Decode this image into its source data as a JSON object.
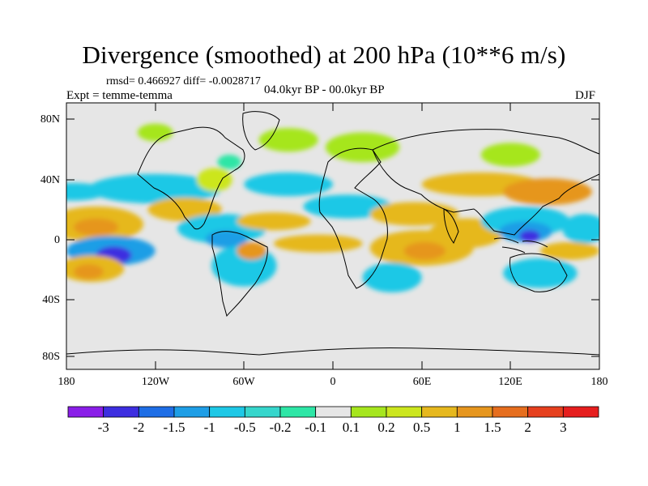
{
  "title": "Divergence (smoothed) at 200 hPa (10**6 m/s)",
  "stats": "rmsd= 0.466927 diff= -0.0028717",
  "expt": "Expt = temme-temma",
  "period": "04.0kyr BP - 00.0kyr BP",
  "season": "DJF",
  "lat_labels": [
    "80N",
    "40N",
    "0",
    "40S",
    "80S"
  ],
  "lon_labels": [
    "180",
    "120W",
    "60W",
    "0",
    "60E",
    "120E",
    "180"
  ],
  "colorbar": {
    "labels": [
      "-3",
      "-2",
      "-1.5",
      "-1",
      "-0.5",
      "-0.2",
      "-0.1",
      "0.1",
      "0.2",
      "0.5",
      "1",
      "1.5",
      "2",
      "3"
    ],
    "colors": [
      "#8a1ee8",
      "#3d2ee0",
      "#1e6ee6",
      "#1e9ee6",
      "#1ec8e6",
      "#36d6cc",
      "#2ee6a6",
      "#e6e6e6",
      "#a6e61e",
      "#cce61e",
      "#e6b81e",
      "#e6961e",
      "#e66e1e",
      "#e6401e",
      "#e61e1e"
    ]
  },
  "map": {
    "background": "#e6e6e6",
    "blobs": [
      {
        "lon": -160,
        "lat": 8,
        "rlon": 32,
        "rlat": 12,
        "color": "#e6b81e"
      },
      {
        "lon": -160,
        "lat": 6,
        "rlon": 15,
        "rlat": 6,
        "color": "#e6961e"
      },
      {
        "lon": -150,
        "lat": -10,
        "rlon": 30,
        "rlat": 10,
        "color": "#1e9ee6"
      },
      {
        "lon": -148,
        "lat": -13,
        "rlon": 12,
        "rlat": 6,
        "color": "#3d2ee0"
      },
      {
        "lon": -163,
        "lat": -22,
        "rlon": 22,
        "rlat": 9,
        "color": "#e6b81e"
      },
      {
        "lon": -165,
        "lat": -24,
        "rlon": 10,
        "rlat": 5,
        "color": "#e6961e"
      },
      {
        "lon": -175,
        "lat": 30,
        "rlon": 22,
        "rlat": 6,
        "color": "#1ec8e6"
      },
      {
        "lon": -120,
        "lat": 32,
        "rlon": 45,
        "rlat": 10,
        "color": "#1ec8e6"
      },
      {
        "lon": -100,
        "lat": 18,
        "rlon": 25,
        "rlat": 8,
        "color": "#e6b81e"
      },
      {
        "lon": -75,
        "lat": 5,
        "rlon": 30,
        "rlat": 10,
        "color": "#1ec8e6"
      },
      {
        "lon": -72,
        "lat": -2,
        "rlon": 14,
        "rlat": 6,
        "color": "#1e9ee6"
      },
      {
        "lon": -60,
        "lat": -20,
        "rlon": 22,
        "rlat": 14,
        "color": "#1ec8e6"
      },
      {
        "lon": -40,
        "lat": 10,
        "rlon": 25,
        "rlat": 6,
        "color": "#e6b81e"
      },
      {
        "lon": -55,
        "lat": -10,
        "rlon": 10,
        "rlat": 6,
        "color": "#e6961e"
      },
      {
        "lon": -30,
        "lat": 35,
        "rlon": 30,
        "rlat": 8,
        "color": "#1ec8e6"
      },
      {
        "lon": -10,
        "lat": -5,
        "rlon": 30,
        "rlat": 6,
        "color": "#e6b81e"
      },
      {
        "lon": 10,
        "lat": 20,
        "rlon": 30,
        "rlat": 8,
        "color": "#1ec8e6"
      },
      {
        "lon": 20,
        "lat": 60,
        "rlon": 25,
        "rlat": 10,
        "color": "#a6e61e"
      },
      {
        "lon": -30,
        "lat": 65,
        "rlon": 20,
        "rlat": 8,
        "color": "#a6e61e"
      },
      {
        "lon": -120,
        "lat": 70,
        "rlon": 12,
        "rlat": 6,
        "color": "#a6e61e"
      },
      {
        "lon": -80,
        "lat": 38,
        "rlon": 12,
        "rlat": 8,
        "color": "#cce61e"
      },
      {
        "lon": -70,
        "lat": 50,
        "rlon": 8,
        "rlat": 5,
        "color": "#2ee6a6"
      },
      {
        "lon": 55,
        "lat": 15,
        "rlon": 30,
        "rlat": 8,
        "color": "#e6b81e"
      },
      {
        "lon": 60,
        "lat": -8,
        "rlon": 35,
        "rlat": 12,
        "color": "#e6b81e"
      },
      {
        "lon": 62,
        "lat": -10,
        "rlon": 14,
        "rlat": 6,
        "color": "#e6961e"
      },
      {
        "lon": 40,
        "lat": -28,
        "rlon": 20,
        "rlat": 10,
        "color": "#1ec8e6"
      },
      {
        "lon": 90,
        "lat": 2,
        "rlon": 25,
        "rlat": 10,
        "color": "#e6b81e"
      },
      {
        "lon": 100,
        "lat": 35,
        "rlon": 40,
        "rlat": 8,
        "color": "#e6b81e"
      },
      {
        "lon": 145,
        "lat": 30,
        "rlon": 30,
        "rlat": 9,
        "color": "#e6961e"
      },
      {
        "lon": 120,
        "lat": 55,
        "rlon": 20,
        "rlat": 8,
        "color": "#a6e61e"
      },
      {
        "lon": 130,
        "lat": 10,
        "rlon": 30,
        "rlat": 10,
        "color": "#1ec8e6"
      },
      {
        "lon": 130,
        "lat": 3,
        "rlon": 18,
        "rlat": 7,
        "color": "#1e9ee6"
      },
      {
        "lon": 133,
        "lat": 0,
        "rlon": 7,
        "rlat": 4,
        "color": "#3d2ee0"
      },
      {
        "lon": 140,
        "lat": -25,
        "rlon": 25,
        "rlat": 10,
        "color": "#1ec8e6"
      },
      {
        "lon": 170,
        "lat": 5,
        "rlon": 15,
        "rlat": 10,
        "color": "#1ec8e6"
      },
      {
        "lon": 160,
        "lat": -10,
        "rlon": 20,
        "rlat": 6,
        "color": "#e6b81e"
      }
    ]
  }
}
